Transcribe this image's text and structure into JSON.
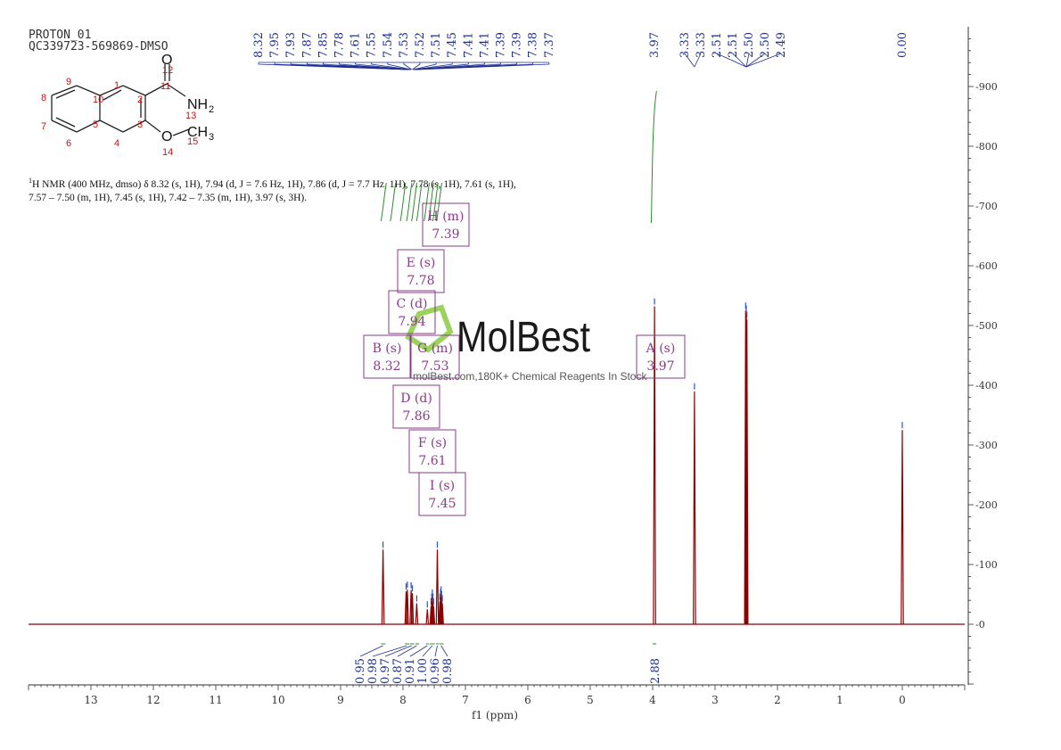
{
  "header": {
    "line1": "PROTON_01",
    "line2": "QC339723-569869-DMSO"
  },
  "nmr_description": {
    "sup": "1",
    "text": "H NMR (400 MHz, dmso) δ 8.32 (s, 1H), 7.94 (d, J = 7.6 Hz, 1H), 7.86 (d, J = 7.7 Hz, 1H), 7.78 (s, 1H), 7.61 (s, 1H), 7.57 – 7.50 (m, 1H), 7.45 (s, 1H), 7.42 – 7.35 (m, 1H), 3.97 (s, 3H)."
  },
  "watermark": {
    "brand": "MolBest",
    "tagline": "molBest.com,180K+ Chemical Reagents In Stock"
  },
  "structure": {
    "atom_numbers": [
      "1",
      "2",
      "3",
      "4",
      "5",
      "6",
      "7",
      "8",
      "9",
      "10",
      "11",
      "12",
      "13",
      "14",
      "15"
    ],
    "groups": {
      "o12": "O",
      "nh2": "NH",
      "nh2_sub": "2",
      "o14": "O",
      "ch3": "CH",
      "ch3_sub": "3"
    }
  },
  "chart_data": {
    "type": "line",
    "xlabel": "f1 (ppm)",
    "x_ticks": [
      13,
      12,
      11,
      10,
      9,
      8,
      7,
      6,
      5,
      4,
      3,
      2,
      1,
      0
    ],
    "xlim": [
      14.0,
      -1.0
    ],
    "y_ticks": [
      0,
      100,
      200,
      300,
      400,
      500,
      600,
      700,
      800,
      900
    ],
    "ylim": [
      -100,
      990
    ],
    "series": [
      {
        "peaks": [
          {
            "ppm": 8.32,
            "height": 125
          },
          {
            "ppm": 7.95,
            "height": 55
          },
          {
            "ppm": 7.93,
            "height": 58
          },
          {
            "ppm": 7.87,
            "height": 57
          },
          {
            "ppm": 7.85,
            "height": 52
          },
          {
            "ppm": 7.78,
            "height": 35
          },
          {
            "ppm": 7.61,
            "height": 25
          },
          {
            "ppm": 7.55,
            "height": 30
          },
          {
            "ppm": 7.54,
            "height": 38
          },
          {
            "ppm": 7.53,
            "height": 45
          },
          {
            "ppm": 7.52,
            "height": 38
          },
          {
            "ppm": 7.51,
            "height": 30
          },
          {
            "ppm": 7.45,
            "height": 125
          },
          {
            "ppm": 7.41,
            "height": 38
          },
          {
            "ppm": 7.4,
            "height": 45
          },
          {
            "ppm": 7.39,
            "height": 50
          },
          {
            "ppm": 7.38,
            "height": 42
          },
          {
            "ppm": 7.37,
            "height": 35
          },
          {
            "ppm": 3.97,
            "height": 532
          },
          {
            "ppm": 3.33,
            "height": 390
          },
          {
            "ppm": 2.51,
            "height": 525
          },
          {
            "ppm": 2.5,
            "height": 520
          },
          {
            "ppm": 2.49,
            "height": 510
          },
          {
            "ppm": 0.0,
            "height": 325
          }
        ]
      }
    ],
    "peak_labels": [
      "8.32",
      "7.95",
      "7.93",
      "7.87",
      "7.85",
      "7.78",
      "7.61",
      "7.55",
      "7.54",
      "7.53",
      "7.52",
      "7.51",
      "7.45",
      "7.41",
      "7.41",
      "7.39",
      "7.39",
      "7.38",
      "7.37",
      "3.97",
      "3.33",
      "3.33",
      "2.51",
      "2.51",
      "2.50",
      "2.50",
      "2.49",
      "0.00"
    ],
    "multiplets": [
      {
        "label": "H (m)",
        "value": "7.39"
      },
      {
        "label": "E (s)",
        "value": "7.78"
      },
      {
        "label": "C (d)",
        "value": "7.94"
      },
      {
        "label": "B (s)",
        "value": "8.32"
      },
      {
        "label": "G (m)",
        "value": "7.53"
      },
      {
        "label": "A (s)",
        "value": "3.97"
      },
      {
        "label": "D (d)",
        "value": "7.86"
      },
      {
        "label": "F (s)",
        "value": "7.61"
      },
      {
        "label": "I (s)",
        "value": "7.45"
      }
    ],
    "integrals": [
      "0.95",
      "0.98",
      "0.97",
      "0.87",
      "0.91",
      "1.00",
      "0.96",
      "0.98",
      "2.88"
    ],
    "colors": {
      "spectrum": "#8b0000",
      "integral": "#2e8b2e",
      "labels": "#1f2f8f",
      "multiplet": "#8b3a8b",
      "axis": "#333333"
    }
  }
}
